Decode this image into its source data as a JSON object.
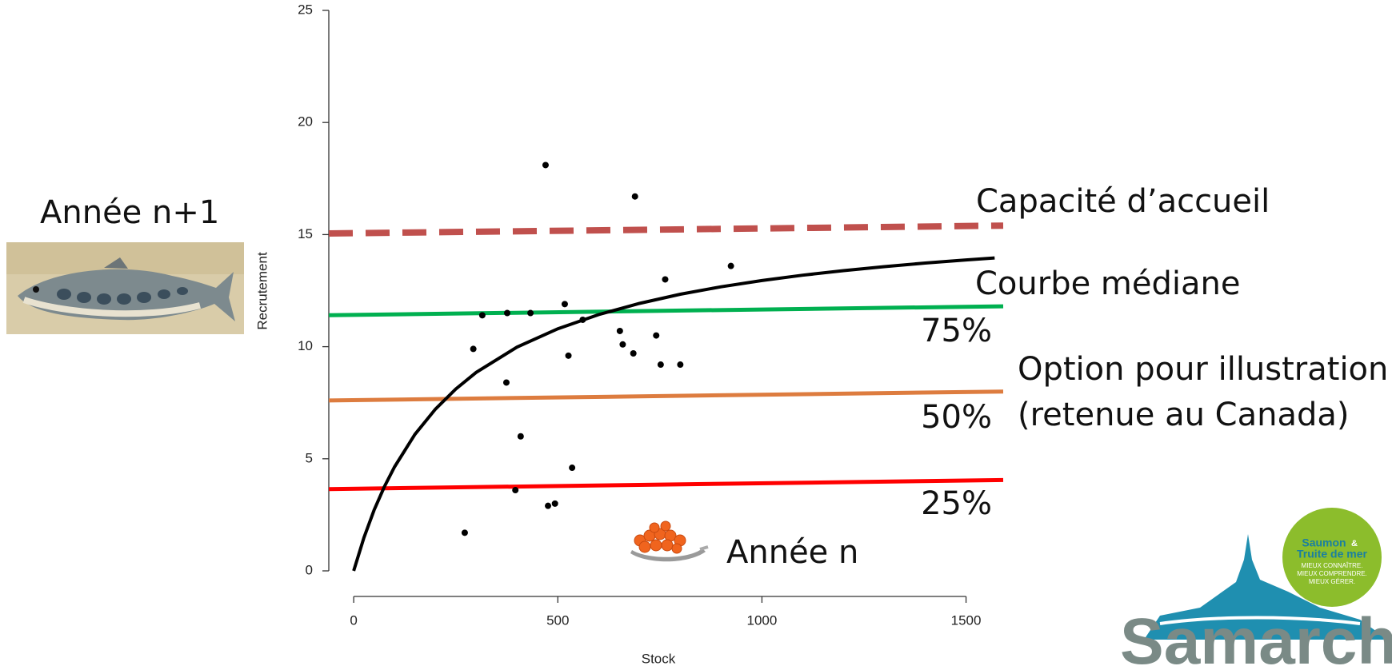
{
  "chart_data": {
    "type": "scatter",
    "x_label": "Stock",
    "y_label": "Recrutement",
    "xlim": [
      -61,
      1591
    ],
    "ylim": [
      0,
      25
    ],
    "xticks": [
      0,
      500,
      1000,
      1500
    ],
    "yticks": [
      0,
      5,
      10,
      15,
      20,
      25
    ],
    "points": {
      "color": "#000000",
      "x": [
        470,
        689,
        924,
        763,
        517,
        315,
        376,
        433,
        561,
        652,
        741,
        293,
        659,
        685,
        526,
        752,
        800,
        374,
        409,
        535,
        396,
        476,
        493,
        272
      ],
      "values": [
        18.1,
        16.7,
        13.6,
        13.0,
        11.9,
        11.4,
        11.5,
        11.5,
        11.2,
        10.7,
        10.5,
        9.9,
        10.1,
        9.7,
        9.6,
        9.2,
        9.2,
        8.4,
        6.0,
        4.6,
        3.6,
        2.9,
        3.0,
        1.7
      ]
    },
    "curve": {
      "name": "Courbe médiane",
      "color": "#000000",
      "x": [
        0,
        25,
        50,
        75,
        100,
        150,
        200,
        250,
        300,
        400,
        500,
        600,
        700,
        800,
        900,
        1000,
        1100,
        1200,
        1300,
        1400,
        1500,
        1570
      ],
      "values": [
        0,
        1.48,
        2.71,
        3.75,
        4.64,
        6.09,
        7.21,
        8.11,
        8.85,
        9.98,
        10.8,
        11.43,
        11.93,
        12.34,
        12.67,
        12.95,
        13.19,
        13.39,
        13.57,
        13.73,
        13.87,
        13.96
      ]
    },
    "reference_lines": [
      {
        "name": "Capacité d’accueil",
        "color": "#c0504d",
        "dashed": true,
        "x": [
          -61,
          1591
        ],
        "values": [
          15.05,
          15.4
        ]
      },
      {
        "name": "75%",
        "color": "#00b050",
        "dashed": false,
        "x": [
          -61,
          1591
        ],
        "values": [
          11.4,
          11.8
        ]
      },
      {
        "name": "50%",
        "color": "#dd7c3f",
        "dashed": false,
        "x": [
          -61,
          1591
        ],
        "values": [
          7.6,
          8.0
        ]
      },
      {
        "name": "25%",
        "color": "#ff0000",
        "dashed": false,
        "x": [
          -61,
          1591
        ],
        "values": [
          3.65,
          4.05
        ]
      }
    ],
    "option_note": [
      "Option pour illustration",
      "(retenue au Canada)"
    ]
  },
  "slide": {
    "recruit_label": "Année n+1",
    "stock_label": "Année n",
    "logo": {
      "badge_title": "Saumon",
      "badge_amp": "&",
      "badge_subtitle": "Truite de mer",
      "badge_lines": [
        "MIEUX CONNAÎTRE.",
        "MIEUX COMPRENDRE.",
        "MIEUX GÉRER."
      ],
      "brand": "Samarch"
    }
  }
}
